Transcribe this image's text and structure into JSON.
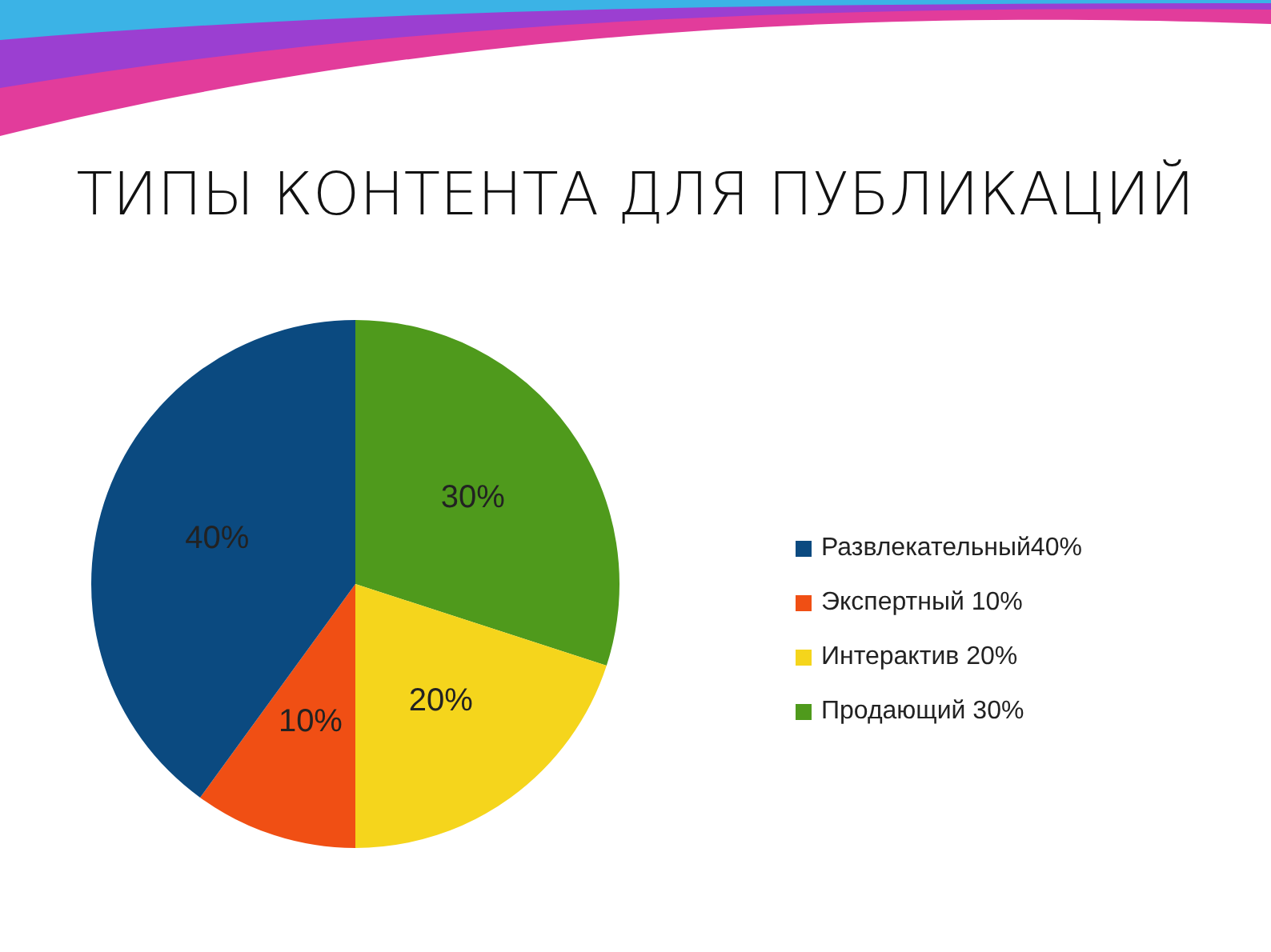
{
  "chart_data": {
    "type": "pie",
    "title": "ТИПЫ КОНТЕНТА ДЛЯ ПУБЛИКАЦИЙ",
    "categories": [
      "Развлекательный40%",
      "Экспертный 10%",
      "Интерактив 20%",
      "Продающий 30%"
    ],
    "values": [
      40,
      10,
      20,
      30
    ],
    "colors": [
      "#0b4a80",
      "#f04f14",
      "#f5d51c",
      "#4f9a1c"
    ],
    "value_labels": [
      "40%",
      "10%",
      "20%",
      "30%"
    ],
    "legend": "right"
  }
}
